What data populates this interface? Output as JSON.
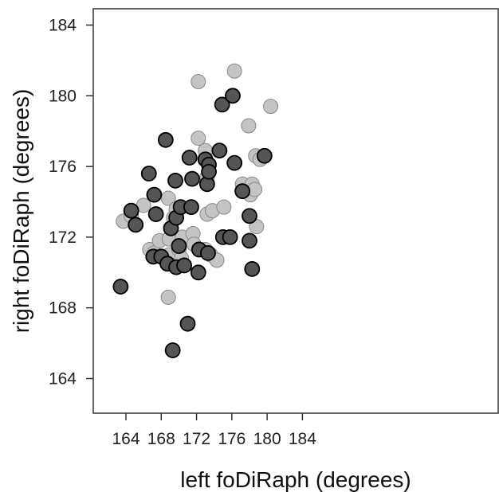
{
  "chart_data": {
    "type": "scatter",
    "title": "",
    "xlabel": "left foDiRaph (degrees)",
    "ylabel": "right foDiRaph (degrees)",
    "xlim": [
      162,
      186
    ],
    "ylim": [
      162,
      185
    ],
    "xticks": [
      164,
      168,
      172,
      176,
      180,
      184
    ],
    "yticks": [
      164,
      168,
      172,
      176,
      180,
      184
    ],
    "grid": false,
    "legend": "none",
    "series": [
      {
        "color": "#c4c4c4",
        "x": [
          163.7,
          164.6,
          166.0,
          166.7,
          167.2,
          167.8,
          168.8,
          168.8,
          168.9,
          168.9,
          169.4,
          169.7,
          170.4,
          170.0,
          170.3,
          171.6,
          171.7,
          172.2,
          172.2,
          173.0,
          173.0,
          173.2,
          173.2,
          173.6,
          173.8,
          174.3,
          175.1,
          176.3,
          177.2,
          177.9,
          178.1,
          178.3,
          178.6,
          178.7,
          178.8,
          179.2,
          180.4
        ],
        "y": [
          172.9,
          173.2,
          173.8,
          171.3,
          171.1,
          171.8,
          174.2,
          168.6,
          171.9,
          171.0,
          173.1,
          173.6,
          172.0,
          171.3,
          170.8,
          172.2,
          171.6,
          180.8,
          177.6,
          176.9,
          171.3,
          175.4,
          173.3,
          171.0,
          173.5,
          170.7,
          173.7,
          181.4,
          175.0,
          178.3,
          174.4,
          175.0,
          174.7,
          176.6,
          172.6,
          176.4,
          179.4
        ],
        "marker_edge": "#888888"
      },
      {
        "color": "#555555",
        "x": [
          163.4,
          164.6,
          165.1,
          166.6,
          167.2,
          167.4,
          167.1,
          168.0,
          168.5,
          168.7,
          169.1,
          169.3,
          169.7,
          169.6,
          169.7,
          170.0,
          170.2,
          170.6,
          171.0,
          171.2,
          171.4,
          171.5,
          172.2,
          172.3,
          173.0,
          173.2,
          173.4,
          173.3,
          173.4,
          174.6,
          174.9,
          175.0,
          175.8,
          176.1,
          176.3,
          177.2,
          178.0,
          178.0,
          178.3,
          179.7
        ],
        "y": [
          169.2,
          173.5,
          172.7,
          175.6,
          174.4,
          173.3,
          170.9,
          170.9,
          177.5,
          170.5,
          172.5,
          165.6,
          173.1,
          175.2,
          170.3,
          171.5,
          173.7,
          170.4,
          167.1,
          176.5,
          173.7,
          175.3,
          170.0,
          171.3,
          176.4,
          175.0,
          176.1,
          171.1,
          175.7,
          176.9,
          179.5,
          172.0,
          172.0,
          180.0,
          176.2,
          174.6,
          173.2,
          171.8,
          170.2,
          176.6
        ],
        "marker_edge": "#000000"
      }
    ]
  }
}
